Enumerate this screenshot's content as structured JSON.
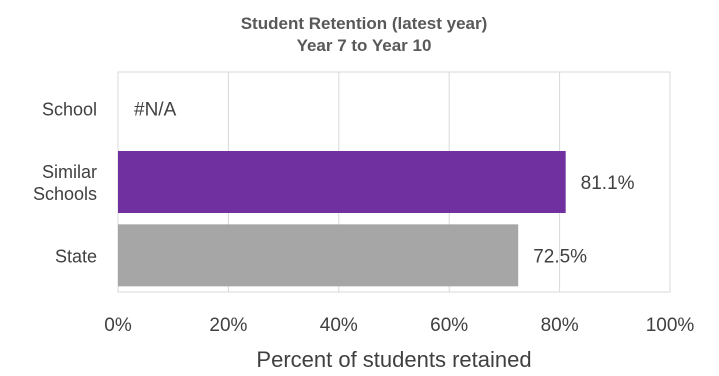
{
  "chart_data": {
    "type": "bar",
    "orientation": "horizontal",
    "title": "Student Retention (latest year)",
    "subtitle": "Year 7 to Year 10",
    "xlabel": "Percent of students retained",
    "ylabel": "",
    "xlim": [
      0,
      100
    ],
    "x_ticks": [
      "0%",
      "20%",
      "40%",
      "60%",
      "80%",
      "100%"
    ],
    "grid": true,
    "legend": "none",
    "categories": [
      {
        "lines": [
          "School"
        ]
      },
      {
        "lines": [
          "Similar",
          "Schools"
        ]
      },
      {
        "lines": [
          "State"
        ]
      }
    ],
    "values": [
      null,
      81.1,
      72.5
    ],
    "data_labels": [
      "#N/A",
      "81.1%",
      "72.5%"
    ],
    "colors": [
      "#7030a0",
      "#7030a0",
      "#a6a6a6"
    ]
  }
}
